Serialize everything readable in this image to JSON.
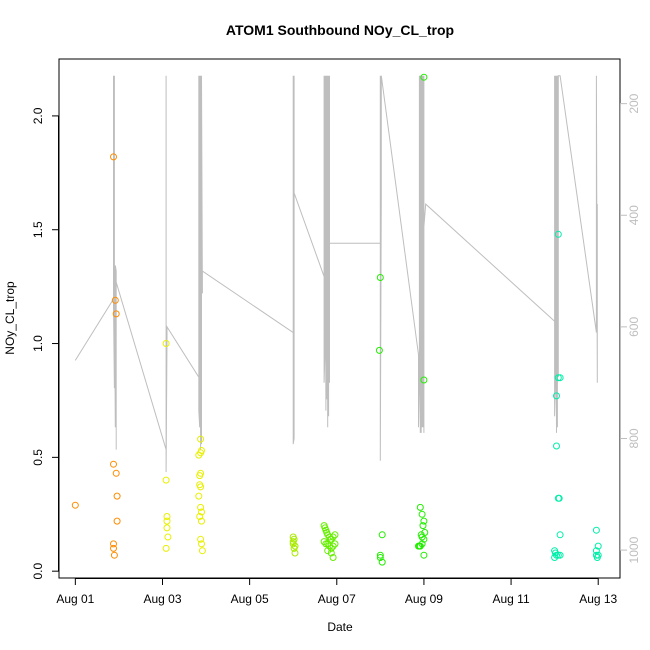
{
  "chart_data": {
    "type": "scatter",
    "title": "ATOM1 Southbound NOy_CL_trop",
    "xlabel": "Date",
    "ylabel": "NOy_CL_trop",
    "xlim": [
      "2016-07-31T15:00",
      "2016-08-13T12:00"
    ],
    "ylim": [
      -0.03,
      2.25
    ],
    "x_ticks": [
      {
        "date": "2016-08-01",
        "label": "Aug 01"
      },
      {
        "date": "2016-08-03",
        "label": "Aug 03"
      },
      {
        "date": "2016-08-05",
        "label": "Aug 05"
      },
      {
        "date": "2016-08-07",
        "label": "Aug 07"
      },
      {
        "date": "2016-08-09",
        "label": "Aug 09"
      },
      {
        "date": "2016-08-11",
        "label": "Aug 11"
      },
      {
        "date": "2016-08-13",
        "label": "Aug 13"
      }
    ],
    "y_ticks": [
      {
        "value": 0.0,
        "label": "0.0"
      },
      {
        "value": 0.5,
        "label": "0.5"
      },
      {
        "value": 1.0,
        "label": "1.0"
      },
      {
        "value": 1.5,
        "label": "1.5"
      },
      {
        "value": 2.0,
        "label": "2.0"
      }
    ],
    "right_axis": {
      "color": "#bebebe",
      "range": [
        1050,
        120
      ],
      "reversed": true,
      "ticks": [
        {
          "value": 200,
          "label": "200"
        },
        {
          "value": 400,
          "label": "400"
        },
        {
          "value": 600,
          "label": "600"
        },
        {
          "value": 800,
          "label": "800"
        },
        {
          "value": 1000,
          "label": "1000"
        }
      ]
    },
    "grid": false,
    "legend": "none",
    "point_series": [
      {
        "color": "#ff8c00",
        "points": [
          [
            "2016-08-01T00:00",
            0.29
          ],
          [
            "2016-08-01T21:00",
            1.82
          ],
          [
            "2016-08-01T21:00",
            0.47
          ],
          [
            "2016-08-01T21:00",
            0.12
          ],
          [
            "2016-08-01T21:00",
            0.1
          ],
          [
            "2016-08-01T21:30",
            0.07
          ],
          [
            "2016-08-01T22:00",
            1.19
          ],
          [
            "2016-08-01T22:30",
            1.13
          ],
          [
            "2016-08-01T22:30",
            0.43
          ],
          [
            "2016-08-01T23:00",
            0.33
          ],
          [
            "2016-08-01T23:00",
            0.22
          ]
        ]
      },
      {
        "color": "#e8f000",
        "points": [
          [
            "2016-08-03T02:00",
            1.0
          ],
          [
            "2016-08-03T02:00",
            0.4
          ],
          [
            "2016-08-03T02:30",
            0.24
          ],
          [
            "2016-08-03T02:30",
            0.22
          ],
          [
            "2016-08-03T02:30",
            0.19
          ],
          [
            "2016-08-03T03:00",
            0.15
          ],
          [
            "2016-08-03T02:00",
            0.1
          ],
          [
            "2016-08-03T20:00",
            0.51
          ],
          [
            "2016-08-03T20:30",
            0.42
          ],
          [
            "2016-08-03T21:00",
            0.58
          ],
          [
            "2016-08-03T21:30",
            0.53
          ],
          [
            "2016-08-03T21:00",
            0.43
          ],
          [
            "2016-08-03T20:30",
            0.38
          ],
          [
            "2016-08-03T21:00",
            0.37
          ],
          [
            "2016-08-03T20:00",
            0.33
          ],
          [
            "2016-08-03T21:00",
            0.28
          ],
          [
            "2016-08-03T21:30",
            0.26
          ],
          [
            "2016-08-03T20:30",
            0.24
          ],
          [
            "2016-08-03T21:30",
            0.22
          ],
          [
            "2016-08-03T21:00",
            0.14
          ],
          [
            "2016-08-03T21:30",
            0.12
          ],
          [
            "2016-08-03T22:00",
            0.09
          ],
          [
            "2016-08-03T21:00",
            0.52
          ]
        ]
      },
      {
        "color": "#a8ea00",
        "points": [
          [
            "2016-08-06T00:00",
            0.15
          ],
          [
            "2016-08-06T00:30",
            0.14
          ],
          [
            "2016-08-06T00:00",
            0.12
          ],
          [
            "2016-08-06T01:00",
            0.11
          ],
          [
            "2016-08-06T00:30",
            0.1
          ],
          [
            "2016-08-06T01:00",
            0.08
          ],
          [
            "2016-08-06T00:00",
            0.13
          ]
        ]
      },
      {
        "color": "#66ee00",
        "points": [
          [
            "2016-08-06T17:00",
            0.2
          ],
          [
            "2016-08-06T17:30",
            0.19
          ],
          [
            "2016-08-06T18:00",
            0.18
          ],
          [
            "2016-08-06T18:30",
            0.17
          ],
          [
            "2016-08-06T19:00",
            0.16
          ],
          [
            "2016-08-06T20:00",
            0.15
          ],
          [
            "2016-08-06T21:00",
            0.14
          ],
          [
            "2016-08-06T22:00",
            0.15
          ],
          [
            "2016-08-06T23:00",
            0.16
          ],
          [
            "2016-08-06T17:00",
            0.13
          ],
          [
            "2016-08-06T18:00",
            0.12
          ],
          [
            "2016-08-06T19:00",
            0.12
          ],
          [
            "2016-08-06T20:00",
            0.11
          ],
          [
            "2016-08-06T21:00",
            0.1
          ],
          [
            "2016-08-06T22:00",
            0.11
          ],
          [
            "2016-08-06T23:00",
            0.12
          ],
          [
            "2016-08-06T21:00",
            0.08
          ],
          [
            "2016-08-06T22:00",
            0.06
          ],
          [
            "2016-08-06T19:00",
            0.09
          ],
          [
            "2016-08-06T20:30",
            0.14
          ]
        ]
      },
      {
        "color": "#22ee00",
        "points": [
          [
            "2016-08-08T00:00",
            1.29
          ],
          [
            "2016-08-07T23:30",
            0.97
          ],
          [
            "2016-08-08T01:00",
            0.16
          ],
          [
            "2016-08-08T00:00",
            0.07
          ],
          [
            "2016-08-08T00:00",
            0.06
          ],
          [
            "2016-08-08T01:00",
            0.04
          ],
          [
            "2016-08-08T22:00",
            0.28
          ],
          [
            "2016-08-08T23:00",
            0.25
          ],
          [
            "2016-08-09T00:00",
            0.22
          ],
          [
            "2016-08-08T23:30",
            0.2
          ],
          [
            "2016-08-09T00:30",
            0.17
          ],
          [
            "2016-08-08T22:30",
            0.16
          ],
          [
            "2016-08-08T23:00",
            0.15
          ],
          [
            "2016-08-09T00:00",
            0.14
          ],
          [
            "2016-08-08T22:00",
            0.11
          ],
          [
            "2016-08-08T21:00",
            0.11
          ],
          [
            "2016-08-08T21:30",
            0.11
          ],
          [
            "2016-08-08T23:00",
            0.12
          ],
          [
            "2016-08-09T00:00",
            0.07
          ],
          [
            "2016-08-09T00:00",
            0.84
          ],
          [
            "2016-08-09T00:00",
            2.17
          ]
        ]
      },
      {
        "color": "#00eeaa",
        "points": [
          [
            "2016-08-12T02:00",
            1.48
          ],
          [
            "2016-08-12T03:00",
            0.85
          ],
          [
            "2016-08-12T02:00",
            0.85
          ],
          [
            "2016-08-12T01:00",
            0.77
          ],
          [
            "2016-08-12T01:00",
            0.55
          ],
          [
            "2016-08-12T02:00",
            0.32
          ],
          [
            "2016-08-12T02:30",
            0.32
          ],
          [
            "2016-08-12T03:00",
            0.16
          ],
          [
            "2016-08-12T00:00",
            0.09
          ],
          [
            "2016-08-12T00:30",
            0.08
          ],
          [
            "2016-08-12T01:00",
            0.07
          ],
          [
            "2016-08-12T00:00",
            0.06
          ],
          [
            "2016-08-12T02:00",
            0.07
          ],
          [
            "2016-08-12T03:00",
            0.07
          ],
          [
            "2016-08-12T23:00",
            0.18
          ],
          [
            "2016-08-13T00:00",
            0.11
          ],
          [
            "2016-08-12T23:00",
            0.09
          ],
          [
            "2016-08-13T00:00",
            0.07
          ],
          [
            "2016-08-12T23:30",
            0.06
          ],
          [
            "2016-08-12T23:00",
            0.07
          ]
        ]
      }
    ],
    "pressure_series": {
      "color": "#bebebe",
      "points": [
        [
          "2016-08-01T00:00",
          660
        ],
        [
          "2016-08-01T21:00",
          550
        ],
        [
          "2016-08-01T21:00",
          150
        ],
        [
          "2016-08-01T21:00",
          560
        ],
        [
          "2016-08-01T21:30",
          710
        ],
        [
          "2016-08-01T21:30",
          150
        ],
        [
          "2016-08-01T21:30",
          500
        ],
        [
          "2016-08-01T22:00",
          780
        ],
        [
          "2016-08-01T22:00",
          490
        ],
        [
          "2016-08-01T22:30",
          500
        ],
        [
          "2016-08-01T22:30",
          820
        ],
        [
          "2016-08-01T22:30",
          520
        ],
        [
          "2016-08-03T02:00",
          820
        ],
        [
          "2016-08-03T02:00",
          150
        ],
        [
          "2016-08-03T02:00",
          860
        ],
        [
          "2016-08-03T02:30",
          620
        ],
        [
          "2016-08-03T02:30",
          600
        ],
        [
          "2016-08-03T20:00",
          690
        ],
        [
          "2016-08-03T20:00",
          150
        ],
        [
          "2016-08-03T20:00",
          750
        ],
        [
          "2016-08-03T20:30",
          780
        ],
        [
          "2016-08-03T20:30",
          150
        ],
        [
          "2016-08-03T21:00",
          820
        ],
        [
          "2016-08-03T21:00",
          150
        ],
        [
          "2016-08-03T21:30",
          810
        ],
        [
          "2016-08-03T21:30",
          150
        ],
        [
          "2016-08-03T22:00",
          540
        ],
        [
          "2016-08-03T22:00",
          500
        ],
        [
          "2016-08-06T00:00",
          610
        ],
        [
          "2016-08-06T00:00",
          150
        ],
        [
          "2016-08-06T00:00",
          810
        ],
        [
          "2016-08-06T00:30",
          800
        ],
        [
          "2016-08-06T00:30",
          150
        ],
        [
          "2016-08-06T00:30",
          360
        ],
        [
          "2016-08-06T17:00",
          510
        ],
        [
          "2016-08-06T17:00",
          150
        ],
        [
          "2016-08-06T17:00",
          700
        ],
        [
          "2016-08-06T17:30",
          640
        ],
        [
          "2016-08-06T17:30",
          150
        ],
        [
          "2016-08-06T18:00",
          750
        ],
        [
          "2016-08-06T18:00",
          150
        ],
        [
          "2016-08-06T18:30",
          730
        ],
        [
          "2016-08-06T18:30",
          150
        ],
        [
          "2016-08-06T19:00",
          780
        ],
        [
          "2016-08-06T19:00",
          150
        ],
        [
          "2016-08-06T19:30",
          760
        ],
        [
          "2016-08-06T19:30",
          150
        ],
        [
          "2016-08-06T20:00",
          700
        ],
        [
          "2016-08-06T20:00",
          150
        ],
        [
          "2016-08-06T20:00",
          450
        ],
        [
          "2016-08-08T00:00",
          450
        ],
        [
          "2016-08-08T00:00",
          150
        ],
        [
          "2016-08-08T00:00",
          840
        ],
        [
          "2016-08-08T00:30",
          360
        ],
        [
          "2016-08-08T00:30",
          150
        ],
        [
          "2016-08-08T21:00",
          650
        ],
        [
          "2016-08-08T21:00",
          780
        ],
        [
          "2016-08-08T21:30",
          700
        ],
        [
          "2016-08-08T21:30",
          150
        ],
        [
          "2016-08-08T22:00",
          790
        ],
        [
          "2016-08-08T22:00",
          150
        ],
        [
          "2016-08-08T22:30",
          790
        ],
        [
          "2016-08-08T22:30",
          150
        ],
        [
          "2016-08-08T23:00",
          780
        ],
        [
          "2016-08-08T23:00",
          150
        ],
        [
          "2016-08-08T23:30",
          780
        ],
        [
          "2016-08-08T23:30",
          150
        ],
        [
          "2016-08-09T00:00",
          790
        ],
        [
          "2016-08-09T00:00",
          150
        ],
        [
          "2016-08-09T00:00",
          420
        ],
        [
          "2016-08-09T01:00",
          380
        ],
        [
          "2016-08-12T00:00",
          590
        ],
        [
          "2016-08-12T00:00",
          150
        ],
        [
          "2016-08-12T00:00",
          760
        ],
        [
          "2016-08-12T00:30",
          700
        ],
        [
          "2016-08-12T00:30",
          150
        ],
        [
          "2016-08-12T01:00",
          790
        ],
        [
          "2016-08-12T01:00",
          150
        ],
        [
          "2016-08-12T01:30",
          780
        ],
        [
          "2016-08-12T01:30",
          150
        ],
        [
          "2016-08-12T02:00",
          690
        ],
        [
          "2016-08-12T02:00",
          150
        ],
        [
          "2016-08-12T03:00",
          150
        ],
        [
          "2016-08-12T23:00",
          610
        ],
        [
          "2016-08-12T23:00",
          150
        ],
        [
          "2016-08-12T23:30",
          700
        ],
        [
          "2016-08-12T23:30",
          380
        ]
      ]
    }
  }
}
